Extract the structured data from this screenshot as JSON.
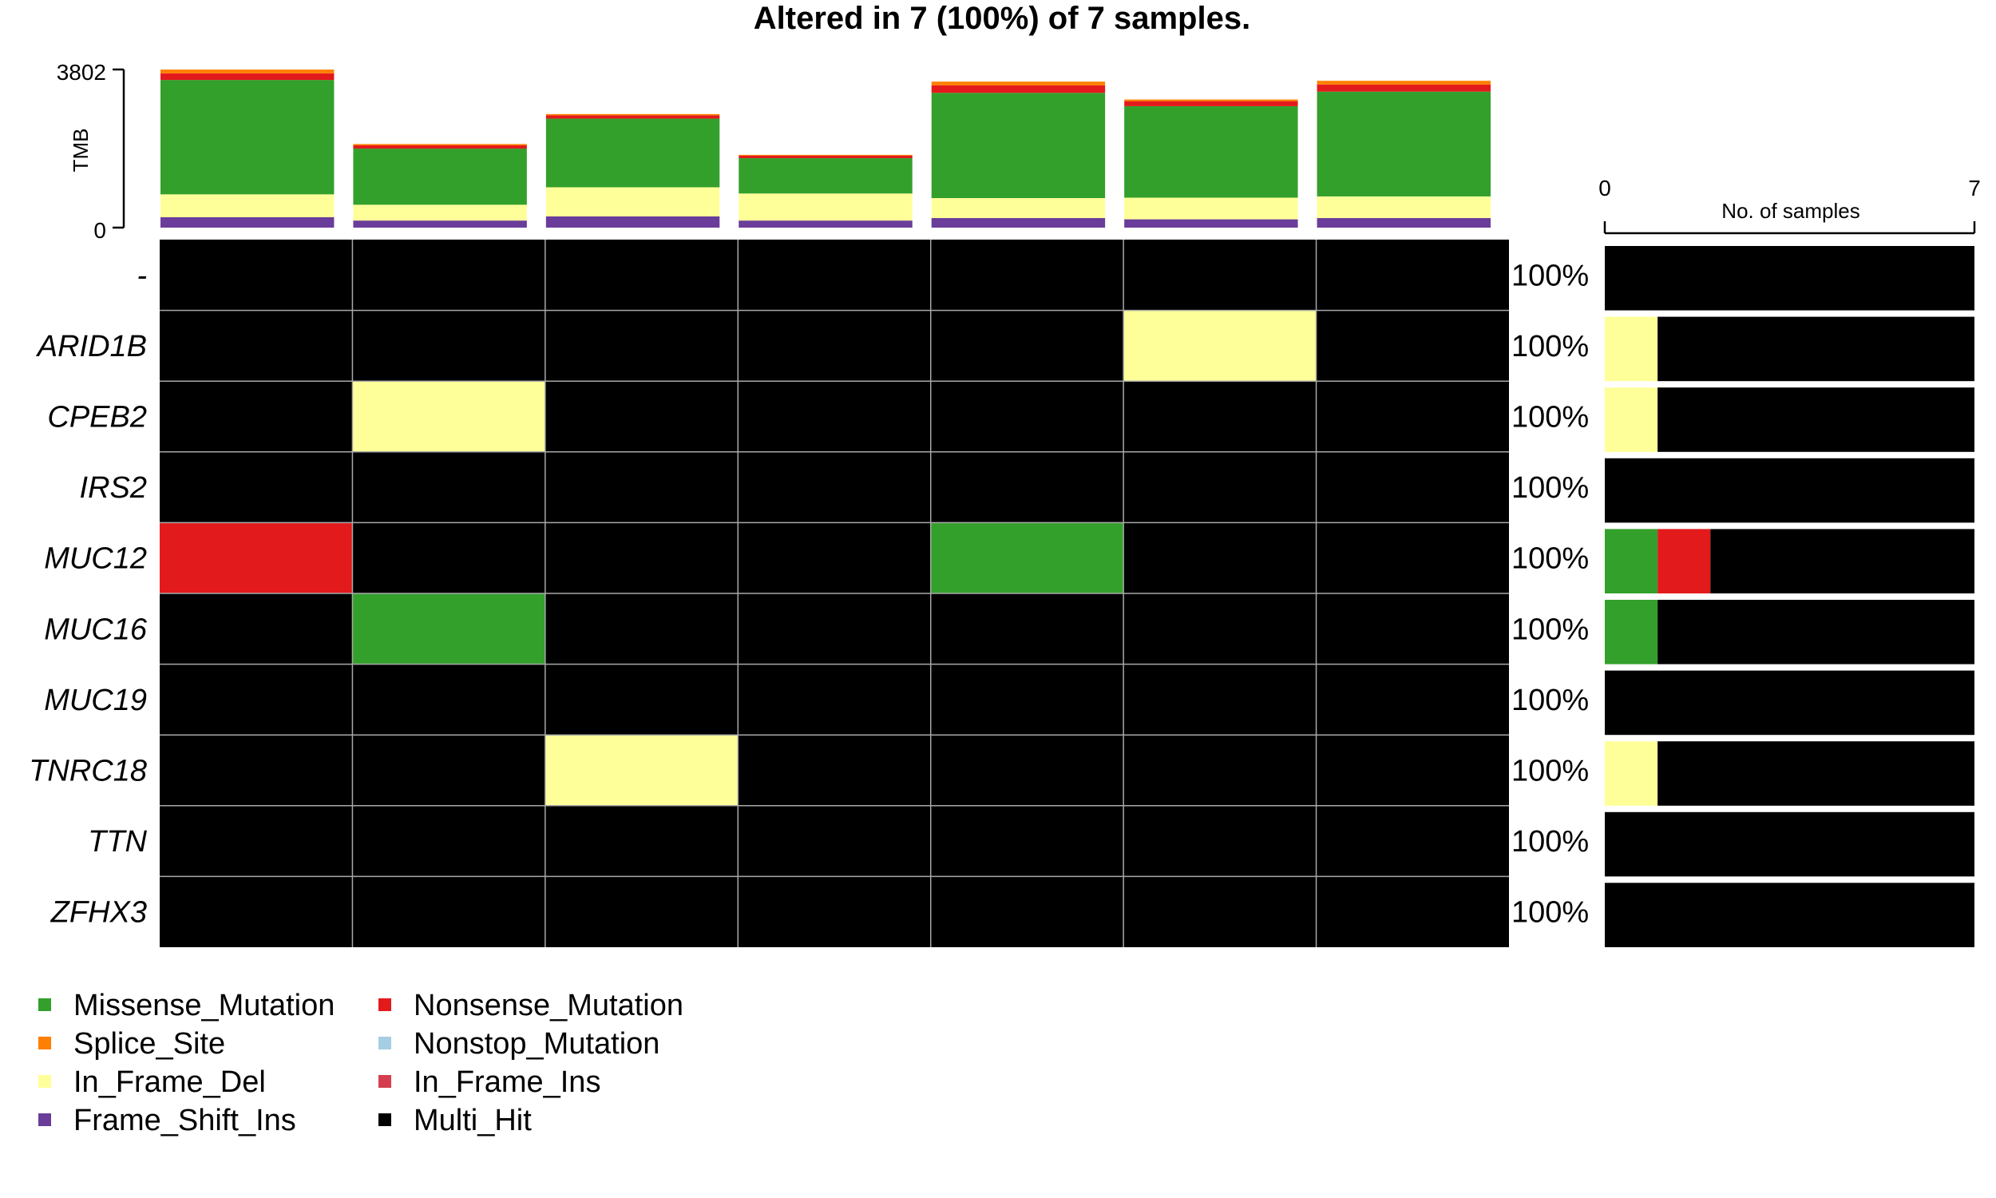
{
  "chart_data": {
    "type": "heatmap",
    "title": "Altered in 7 (100%) of 7 samples.",
    "tmb": {
      "ylabel": "TMB",
      "ylim": [
        0,
        3802
      ],
      "tick_labels": [
        "0",
        "3802"
      ],
      "stack_order": [
        "Frame_Shift_Ins",
        "In_Frame_Del",
        "Missense_Mutation",
        "Nonsense_Mutation",
        "Splice_Site"
      ],
      "samples": [
        {
          "Frame_Shift_Ins": 250,
          "In_Frame_Del": 550,
          "Missense_Mutation": 2750,
          "Nonsense_Mutation": 160,
          "Splice_Site": 90
        },
        {
          "Frame_Shift_Ins": 170,
          "In_Frame_Del": 380,
          "Missense_Mutation": 1350,
          "Nonsense_Mutation": 80,
          "Splice_Site": 30
        },
        {
          "Frame_Shift_Ins": 270,
          "In_Frame_Del": 700,
          "Missense_Mutation": 1650,
          "Nonsense_Mutation": 80,
          "Splice_Site": 30
        },
        {
          "Frame_Shift_Ins": 170,
          "In_Frame_Del": 650,
          "Missense_Mutation": 850,
          "Nonsense_Mutation": 60,
          "Splice_Site": 20
        },
        {
          "Frame_Shift_Ins": 230,
          "In_Frame_Del": 480,
          "Missense_Mutation": 2530,
          "Nonsense_Mutation": 180,
          "Splice_Site": 90
        },
        {
          "Frame_Shift_Ins": 200,
          "In_Frame_Del": 520,
          "Missense_Mutation": 2200,
          "Nonsense_Mutation": 120,
          "Splice_Site": 40
        },
        {
          "Frame_Shift_Ins": 230,
          "In_Frame_Del": 520,
          "Missense_Mutation": 2520,
          "Nonsense_Mutation": 170,
          "Splice_Site": 90
        }
      ]
    },
    "genes": [
      "-",
      "ARID1B",
      "CPEB2",
      "IRS2",
      "MUC12",
      "MUC16",
      "MUC19",
      "TNRC18",
      "TTN",
      "ZFHX3"
    ],
    "percent_labels": [
      "100%",
      "100%",
      "100%",
      "100%",
      "100%",
      "100%",
      "100%",
      "100%",
      "100%",
      "100%"
    ],
    "matrix": [
      [
        "Multi_Hit",
        "Multi_Hit",
        "Multi_Hit",
        "Multi_Hit",
        "Multi_Hit",
        "Multi_Hit",
        "Multi_Hit"
      ],
      [
        "Multi_Hit",
        "Multi_Hit",
        "Multi_Hit",
        "Multi_Hit",
        "Multi_Hit",
        "In_Frame_Del",
        "Multi_Hit"
      ],
      [
        "Multi_Hit",
        "In_Frame_Del",
        "Multi_Hit",
        "Multi_Hit",
        "Multi_Hit",
        "Multi_Hit",
        "Multi_Hit"
      ],
      [
        "Multi_Hit",
        "Multi_Hit",
        "Multi_Hit",
        "Multi_Hit",
        "Multi_Hit",
        "Multi_Hit",
        "Multi_Hit"
      ],
      [
        "Nonsense_Mutation",
        "Multi_Hit",
        "Multi_Hit",
        "Multi_Hit",
        "Missense_Mutation",
        "Multi_Hit",
        "Multi_Hit"
      ],
      [
        "Multi_Hit",
        "Missense_Mutation",
        "Multi_Hit",
        "Multi_Hit",
        "Multi_Hit",
        "Multi_Hit",
        "Multi_Hit"
      ],
      [
        "Multi_Hit",
        "Multi_Hit",
        "Multi_Hit",
        "Multi_Hit",
        "Multi_Hit",
        "Multi_Hit",
        "Multi_Hit"
      ],
      [
        "Multi_Hit",
        "Multi_Hit",
        "In_Frame_Del",
        "Multi_Hit",
        "Multi_Hit",
        "Multi_Hit",
        "Multi_Hit"
      ],
      [
        "Multi_Hit",
        "Multi_Hit",
        "Multi_Hit",
        "Multi_Hit",
        "Multi_Hit",
        "Multi_Hit",
        "Multi_Hit"
      ],
      [
        "Multi_Hit",
        "Multi_Hit",
        "Multi_Hit",
        "Multi_Hit",
        "Multi_Hit",
        "Multi_Hit",
        "Multi_Hit"
      ]
    ],
    "gene_bars": {
      "xlabel": "No. of samples",
      "xlim": [
        0,
        7
      ],
      "tick_labels": [
        "0",
        "7"
      ],
      "order": [
        "Missense_Mutation",
        "Nonsense_Mutation",
        "In_Frame_Del",
        "Multi_Hit"
      ],
      "rows": [
        {
          "Multi_Hit": 7
        },
        {
          "In_Frame_Del": 1,
          "Multi_Hit": 6
        },
        {
          "In_Frame_Del": 1,
          "Multi_Hit": 6
        },
        {
          "Multi_Hit": 7
        },
        {
          "Missense_Mutation": 1,
          "Nonsense_Mutation": 1,
          "Multi_Hit": 5
        },
        {
          "Missense_Mutation": 1,
          "Multi_Hit": 6
        },
        {
          "Multi_Hit": 7
        },
        {
          "In_Frame_Del": 1,
          "Multi_Hit": 6
        },
        {
          "Multi_Hit": 7
        },
        {
          "Multi_Hit": 7
        }
      ]
    },
    "legend": {
      "placement": "bottom-left",
      "items": [
        {
          "name": "Missense_Mutation",
          "color": "#33a02c"
        },
        {
          "name": "Nonsense_Mutation",
          "color": "#e31a1c"
        },
        {
          "name": "Splice_Site",
          "color": "#ff7f00"
        },
        {
          "name": "Nonstop_Mutation",
          "color": "#a6cee3"
        },
        {
          "name": "In_Frame_Del",
          "color": "#ffff99"
        },
        {
          "name": "In_Frame_Ins",
          "color": "#d53e4f"
        },
        {
          "name": "Frame_Shift_Ins",
          "color": "#6a3d9a"
        },
        {
          "name": "Multi_Hit",
          "color": "#000000"
        }
      ]
    },
    "colors": {
      "Missense_Mutation": "#33a02c",
      "Nonsense_Mutation": "#e31a1c",
      "Splice_Site": "#ff7f00",
      "Nonstop_Mutation": "#a6cee3",
      "In_Frame_Del": "#ffff99",
      "In_Frame_Ins": "#d53e4f",
      "Frame_Shift_Ins": "#6a3d9a",
      "Multi_Hit": "#000000"
    }
  }
}
